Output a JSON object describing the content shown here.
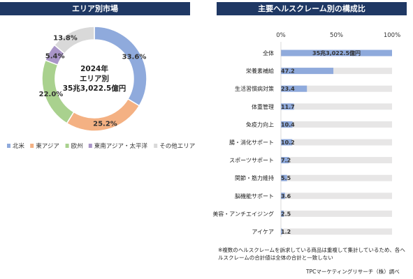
{
  "left_title": "エリア別市場",
  "right_title": "主要ヘルスクレーム別の構成比",
  "colors": {
    "header_bg": "#1f3864",
    "north_america": "#8faadc",
    "east_asia": "#f4b183",
    "europe": "#a9d18e",
    "southeast_asia": "#a995c8",
    "other": "#d9d9d9",
    "bar": "#8faadc",
    "bar_track": "#e7e6e6"
  },
  "note": "※複数のヘルスクレームを訴求している商品は重複して集計しているため、各ヘルスクレームの合計値は全体の合計と一致しない",
  "source": "TPCマーケティングリサーチ（株）調べ",
  "chart_data": [
    {
      "type": "pie",
      "donut": true,
      "center_label": [
        "2024年",
        "エリア別",
        "35兆3,022.5億円"
      ],
      "categories": [
        "北米",
        "東アジア",
        "欧州",
        "東南アジア・太平洋",
        "その他エリア"
      ],
      "values": [
        33.6,
        25.2,
        22.0,
        5.4,
        13.8
      ],
      "value_labels": [
        "33.6%",
        "25.2%",
        "22.0%",
        "5.4%",
        "13.8%"
      ],
      "legend_position": "bottom"
    },
    {
      "type": "bar",
      "orientation": "horizontal",
      "categories": [
        "全体",
        "栄養素補給",
        "生活習慣病対策",
        "体重管理",
        "免疫力向上",
        "腸・消化サポート",
        "スポーツサポート",
        "関節・筋力維持",
        "脳機能サポート",
        "美容・アンチエイジング",
        "アイケア"
      ],
      "values": [
        100,
        47.2,
        23.4,
        11.7,
        10.4,
        10.2,
        7.2,
        5.5,
        3.6,
        2.5,
        1.2
      ],
      "value_labels": [
        "35兆3,022.5億円",
        "47.2",
        "23.4",
        "11.7",
        "10.4",
        "10.2",
        "7.2",
        "5.5",
        "3.6",
        "2.5",
        "1.2"
      ],
      "xlim": [
        0,
        100
      ],
      "xticks": [
        "0%",
        "50%",
        "100%"
      ]
    }
  ]
}
